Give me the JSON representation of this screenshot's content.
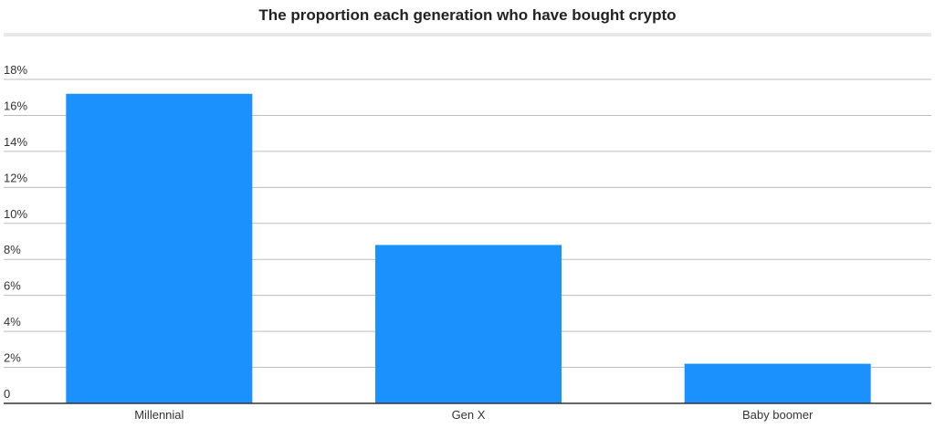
{
  "chart_data": {
    "type": "bar",
    "title": "The proportion each generation who have bought crypto",
    "xlabel": "",
    "ylabel": "",
    "categories": [
      "Millennial",
      "Gen X",
      "Baby boomer"
    ],
    "values": [
      17.2,
      8.8,
      2.2
    ],
    "ylim": [
      0,
      18
    ],
    "yticks": [
      0,
      2,
      4,
      6,
      8,
      10,
      12,
      14,
      16,
      18
    ],
    "ytick_labels": [
      "0",
      "2%",
      "4%",
      "6%",
      "8%",
      "10%",
      "12%",
      "14%",
      "16%",
      "18%"
    ],
    "grid": true,
    "legend": "none",
    "bar_color": "#1a91fd"
  }
}
